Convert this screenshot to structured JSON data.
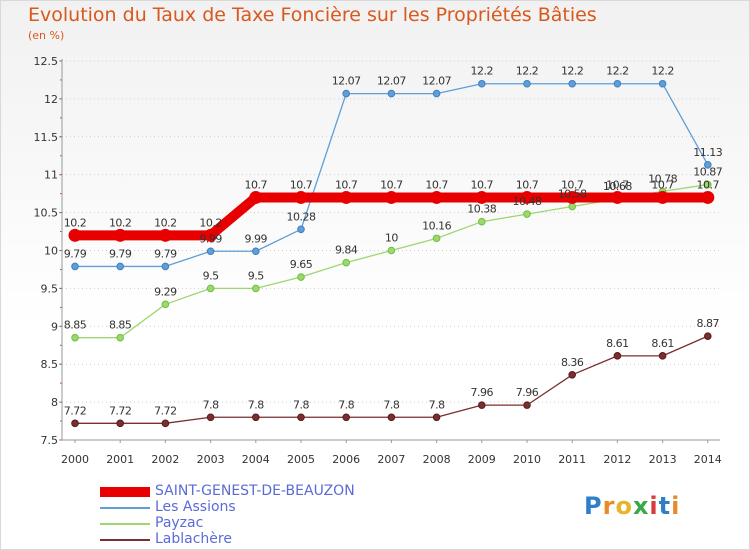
{
  "title": "Evolution du Taux de Taxe Foncière sur les Propriétés Bâties",
  "unit": "(en %)",
  "logo": "Proxiti",
  "colors": {
    "title": "#d9581c",
    "legend_text": "#5b6bd6",
    "grid": "#cccccc",
    "axis": "#999999"
  },
  "chart_data": {
    "type": "line",
    "title": "Evolution du Taux de Taxe Foncière sur les Propriétés Bâties",
    "ylabel": "(en %)",
    "xlabel": "",
    "categories": [
      "2000",
      "2001",
      "2002",
      "2003",
      "2004",
      "2005",
      "2006",
      "2007",
      "2008",
      "2009",
      "2010",
      "2011",
      "2012",
      "2013",
      "2014"
    ],
    "ylim": [
      7.5,
      12.5
    ],
    "yticks": [
      7.5,
      8,
      8.5,
      9,
      9.5,
      10,
      10.5,
      11,
      11.5,
      12,
      12.5
    ],
    "ytick_labels": [
      "7.5",
      "8",
      "8.5",
      "9",
      "9.5",
      "10",
      "10.5",
      "11",
      "11.5",
      "12",
      "12.5"
    ],
    "grid": "horizontal",
    "legend": "bottom-left",
    "series": [
      {
        "name": "SAINT-GENEST-DE-BEAUZON",
        "color": "#e80000",
        "marker": "#e80000",
        "values": [
          10.2,
          10.2,
          10.2,
          10.2,
          10.7,
          10.7,
          10.7,
          10.7,
          10.7,
          10.7,
          10.7,
          10.7,
          10.7,
          10.7,
          10.7
        ],
        "labels": [
          "10.2",
          "10.2",
          "10.2",
          "10.2",
          "10.7",
          "10.7",
          "10.7",
          "10.7",
          "10.7",
          "10.7",
          "10.7",
          "10.7",
          "10.7",
          "10.7",
          "10.7"
        ]
      },
      {
        "name": "Les Assions",
        "color": "#5f9ed6",
        "marker": "#3d7fc1",
        "values": [
          9.79,
          9.79,
          9.79,
          9.99,
          9.99,
          10.28,
          12.07,
          12.07,
          12.07,
          12.2,
          12.2,
          12.2,
          12.2,
          12.2,
          11.13
        ],
        "labels": [
          "9.79",
          "9.79",
          "9.79",
          "9.99",
          "9.99",
          "10.28",
          "12.07",
          "12.07",
          "12.07",
          "12.2",
          "12.2",
          "12.2",
          "12.2",
          "12.2",
          "11.13"
        ]
      },
      {
        "name": "Payzac",
        "color": "#9ed670",
        "marker": "#6cc23a",
        "values": [
          8.85,
          8.85,
          9.29,
          9.5,
          9.5,
          9.65,
          9.84,
          10,
          10.16,
          10.38,
          10.48,
          10.58,
          10.68,
          10.78,
          10.87
        ],
        "labels": [
          "8.85",
          "8.85",
          "9.29",
          "9.5",
          "9.5",
          "9.65",
          "9.84",
          "10",
          "10.16",
          "10.38",
          "10.48",
          "10.58",
          "10.68",
          "10.78",
          "10.87"
        ]
      },
      {
        "name": "Lablachère",
        "color": "#7a2f2f",
        "marker": "#5a1a1a",
        "values": [
          7.72,
          7.72,
          7.72,
          7.8,
          7.8,
          7.8,
          7.8,
          7.8,
          7.8,
          7.96,
          7.96,
          8.36,
          8.61,
          8.61,
          8.87
        ],
        "labels": [
          "7.72",
          "7.72",
          "7.72",
          "7.8",
          "7.8",
          "7.8",
          "7.8",
          "7.8",
          "7.8",
          "7.96",
          "7.96",
          "8.36",
          "8.61",
          "8.61",
          "8.87"
        ]
      }
    ]
  }
}
